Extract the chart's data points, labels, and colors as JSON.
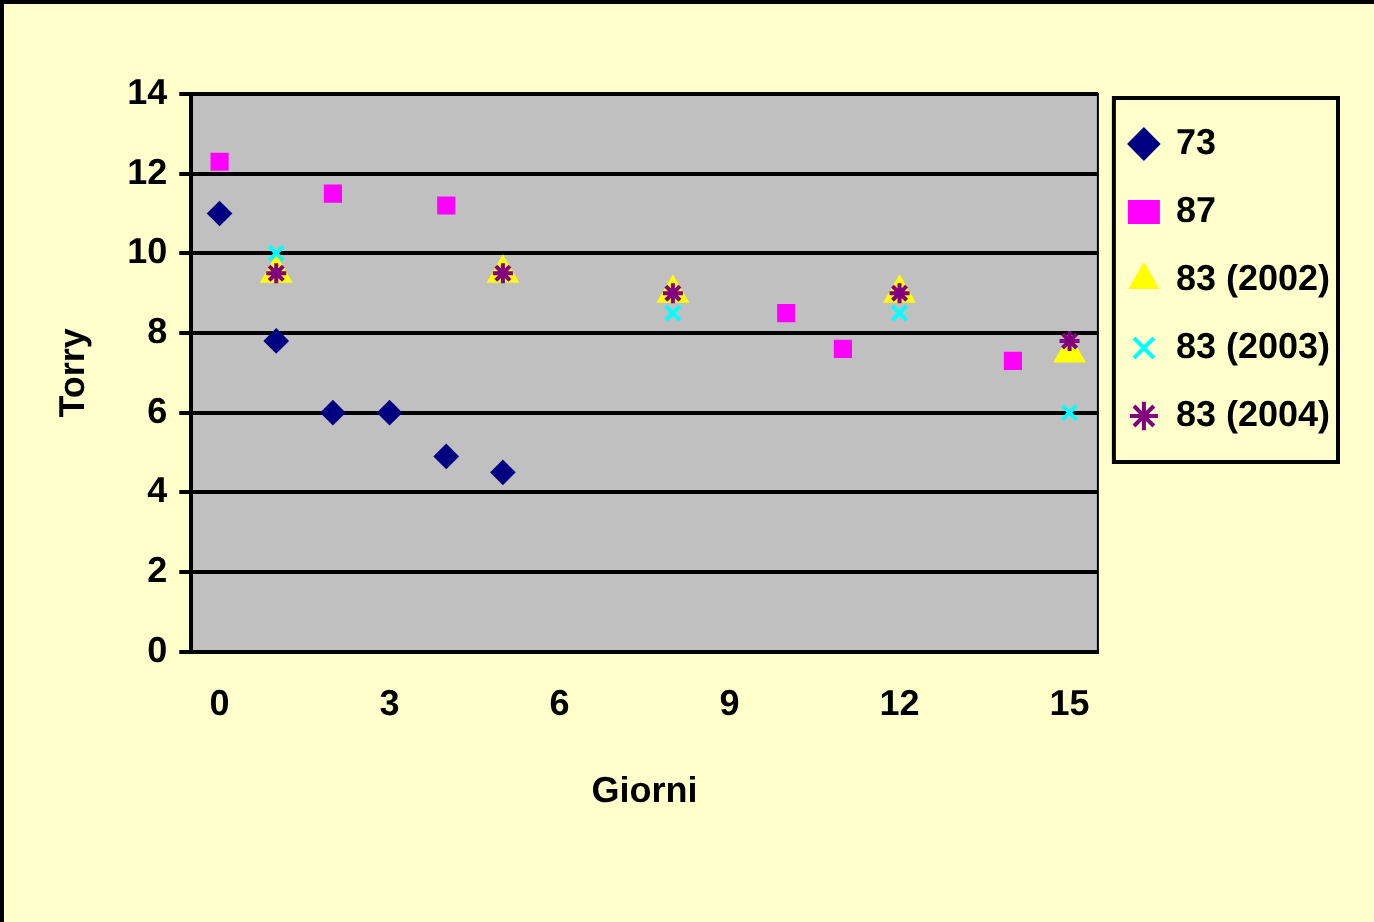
{
  "chart_data": {
    "type": "scatter",
    "xlabel": "Giorni",
    "ylabel": "Torry",
    "xlim": [
      -0.5,
      15.5
    ],
    "xticks": [
      0,
      3,
      6,
      9,
      12,
      15
    ],
    "ylim": [
      0,
      14
    ],
    "yticks": [
      0,
      2,
      4,
      6,
      8,
      10,
      12,
      14
    ],
    "grid": "y",
    "legend": "right",
    "series": [
      {
        "name": "73",
        "color": "#000080",
        "marker": "diamond",
        "x": [
          0,
          1,
          2,
          3,
          4,
          5
        ],
        "values": [
          11,
          7.8,
          6,
          6,
          4.9,
          4.5
        ]
      },
      {
        "name": "87",
        "color": "#ff00ff",
        "marker": "square",
        "x": [
          0,
          2,
          4,
          10,
          11,
          14
        ],
        "values": [
          12.3,
          11.5,
          11.2,
          8.5,
          7.6,
          7.3
        ]
      },
      {
        "name": "83 (2002)",
        "color": "#ffff00",
        "marker": "triangle",
        "x": [
          1,
          5,
          8,
          12,
          15
        ],
        "values": [
          9.5,
          9.5,
          9,
          9,
          7.5
        ]
      },
      {
        "name": "83 (2003)",
        "color": "#00ffff",
        "marker": "cross",
        "x": [
          1,
          8,
          12,
          15
        ],
        "values": [
          10,
          8.5,
          8.5,
          6
        ]
      },
      {
        "name": "83 (2004)",
        "color": "#800080",
        "x": [
          1,
          5,
          8,
          12,
          15
        ],
        "values": [
          9.5,
          9.5,
          9,
          9,
          7.8
        ]
      }
    ]
  }
}
